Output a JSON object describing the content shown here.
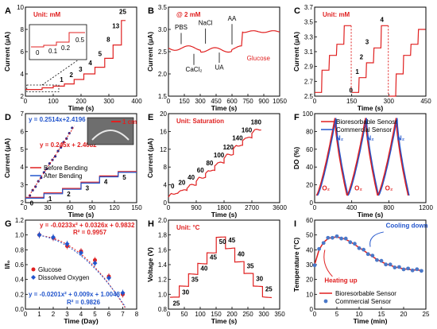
{
  "colors": {
    "red": "#e02020",
    "blue": "#2255cc",
    "black": "#000000"
  },
  "chart_data": [
    {
      "id": "A",
      "type": "line",
      "panel_label": "A",
      "annotation": "Unit: mM",
      "xlabel": "Time (s)",
      "ylabel": "Current (μA)",
      "xlim": [
        0,
        400
      ],
      "ylim": [
        2,
        10
      ],
      "xticks": [
        "0",
        "100",
        "200",
        "300",
        "400"
      ],
      "yticks": [
        "2",
        "4",
        "6",
        "8",
        "10"
      ],
      "steps": [
        {
          "x": 0,
          "y": 2.6
        },
        {
          "x": 60,
          "y": 2.75
        },
        {
          "x": 100,
          "y": 2.9
        },
        {
          "x": 140,
          "y": 3.1
        },
        {
          "x": 175,
          "y": 3.5
        },
        {
          "x": 210,
          "y": 4.0
        },
        {
          "x": 250,
          "y": 4.6
        },
        {
          "x": 285,
          "y": 5.4
        },
        {
          "x": 315,
          "y": 6.6
        },
        {
          "x": 345,
          "y": 8.8
        },
        {
          "x": 360,
          "y": 8.8
        }
      ],
      "step_labels": [
        "1",
        "2",
        "3",
        "4",
        "5",
        "8",
        "13",
        "25"
      ],
      "inset": {
        "labels": [
          "0",
          "0.1",
          "0.2",
          "0.5"
        ]
      }
    },
    {
      "id": "B",
      "type": "line",
      "panel_label": "B",
      "annotation": "@ 2 mM",
      "xlabel": "Time (s)",
      "ylabel": "Current (μA)",
      "xlim": [
        0,
        1050
      ],
      "ylim": [
        1.5,
        3.5
      ],
      "xticks": [
        "0",
        "150",
        "300",
        "450",
        "600",
        "750",
        "900",
        "1050"
      ],
      "yticks": [
        "1.5",
        "2.0",
        "2.5",
        "3.0",
        "3.5"
      ],
      "series": [
        {
          "name": "trace",
          "points": [
            [
              0,
              2.6
            ],
            [
              120,
              2.58
            ],
            [
              240,
              2.5
            ],
            [
              360,
              2.52
            ],
            [
              480,
              2.55
            ],
            [
              600,
              2.5
            ],
            [
              690,
              2.5
            ],
            [
              700,
              2.95
            ],
            [
              1050,
              2.95
            ]
          ]
        }
      ],
      "annotations": [
        "PBS",
        "NaCl",
        "AA",
        "CaCl₂",
        "UA",
        "Glucose"
      ]
    },
    {
      "id": "C",
      "type": "line",
      "panel_label": "C",
      "annotation": "Unit: mM",
      "xlabel": "Time (s)",
      "ylabel": "Current (μA)",
      "xlim": [
        0,
        450
      ],
      "ylim": [
        2.5,
        3.7
      ],
      "xticks": [
        "0",
        "150",
        "300",
        "450"
      ],
      "yticks": [
        "2.5",
        "2.7",
        "2.9",
        "3.1",
        "3.3",
        "3.5",
        "3.7"
      ],
      "cycles": [
        [
          2.55,
          2.85,
          3.05,
          3.2,
          3.45
        ],
        [
          2.55,
          2.75,
          2.95,
          3.15,
          3.45
        ],
        [
          2.5,
          2.8,
          3.05,
          3.2,
          3.4
        ]
      ],
      "step_labels": [
        "0",
        "1",
        "2",
        "3",
        "4"
      ]
    },
    {
      "id": "D",
      "type": "line",
      "panel_label": "D",
      "xlabel": "Time (s)",
      "ylabel": "Current (μA)",
      "xlim": [
        0,
        150
      ],
      "ylim": [
        2,
        7
      ],
      "xticks": [
        "0",
        "30",
        "60",
        "90",
        "120",
        "150"
      ],
      "yticks": [
        "2",
        "3",
        "4",
        "5",
        "6",
        "7"
      ],
      "series": [
        {
          "name": "Before Bending",
          "color": "#e02020"
        },
        {
          "name": "After Bending",
          "color": "#2255cc"
        }
      ],
      "steps_before": [
        2.3,
        2.55,
        2.8,
        3.15,
        3.5,
        3.75
      ],
      "steps_after": [
        2.25,
        2.5,
        2.75,
        3.1,
        3.45,
        3.7
      ],
      "step_labels": [
        "0",
        "1",
        "2",
        "3",
        "4",
        "5"
      ],
      "fits": [
        "y = 0.2514x+2.4196",
        "y = 0.245x + 2.4082"
      ],
      "inset_fit_points": [
        2.4,
        2.7,
        2.9,
        3.2,
        3.4,
        3.7,
        3.9,
        4.2,
        4.4,
        4.6,
        4.9,
        5.1,
        5.4,
        5.6,
        5.9,
        6.2
      ],
      "photo_label": "1 cm"
    },
    {
      "id": "E",
      "type": "line",
      "panel_label": "E",
      "annotation": "Unit: Saturation",
      "xlabel": "Time (s)",
      "ylabel": "Current (μA)",
      "xlim": [
        0,
        3600
      ],
      "ylim": [
        0,
        20
      ],
      "xticks": [
        "0",
        "900",
        "1800",
        "2700",
        "3600"
      ],
      "yticks": [
        "0",
        "4",
        "8",
        "12",
        "16",
        "20"
      ],
      "levels": [
        0,
        20,
        40,
        60,
        80,
        100,
        120,
        140,
        160,
        180
      ],
      "values": [
        2.0,
        2.8,
        4.0,
        5.6,
        7.2,
        9.0,
        10.8,
        12.8,
        14.6,
        16.4
      ]
    },
    {
      "id": "F",
      "type": "line",
      "panel_label": "F",
      "xlabel": "Time (s)",
      "ylabel": "DO (%)",
      "xlim": [
        0,
        1200
      ],
      "ylim": [
        0,
        100
      ],
      "xticks": [
        "0",
        "400",
        "800",
        "1200"
      ],
      "yticks": [
        "0",
        "20",
        "40",
        "60",
        "80",
        "100"
      ],
      "series": [
        {
          "name": "Bioresorbable Senosr",
          "color": "#e02020"
        },
        {
          "name": "Commercial Sensor",
          "color": "#2255cc"
        }
      ],
      "cycle_starts": [
        0,
        330,
        660,
        990
      ],
      "gas_labels": [
        "N₂",
        "N₂",
        "N₂",
        "O₂",
        "O₂",
        "O₂"
      ]
    },
    {
      "id": "G",
      "type": "scatter",
      "panel_label": "G",
      "xlabel": "Time (Day)",
      "ylabel": "I/I₀",
      "xlim": [
        0,
        8
      ],
      "ylim": [
        0,
        1.2
      ],
      "xticks": [
        "0",
        "1",
        "2",
        "3",
        "4",
        "5",
        "6",
        "7",
        "8"
      ],
      "yticks": [
        "0.0",
        "0.2",
        "0.4",
        "0.6",
        "0.8",
        "1.0",
        "1.2"
      ],
      "series": [
        {
          "name": "Glucose",
          "color": "#e02020",
          "x": [
            1,
            2,
            3,
            4,
            5,
            6,
            7
          ],
          "y": [
            1.0,
            0.96,
            0.85,
            0.78,
            0.66,
            0.44,
            0.2
          ]
        },
        {
          "name": "Dissolved Oxygen",
          "color": "#2255cc",
          "x": [
            1,
            2,
            3,
            4,
            5,
            6,
            7
          ],
          "y": [
            1.0,
            0.97,
            0.88,
            0.76,
            0.62,
            0.42,
            0.22
          ]
        }
      ],
      "fits": [
        "y = -0.0233x² + 0.0326x + 0.9832",
        "R² = 0.9957",
        "y = -0.0201x² + 0.009x + 1.0048",
        "R² = 0.9826"
      ]
    },
    {
      "id": "H",
      "type": "line",
      "panel_label": "H",
      "annotation": "Unit: °C",
      "xlabel": "Time (s)",
      "ylabel": "Voltage (V)",
      "xlim": [
        0,
        350
      ],
      "ylim": [
        0.8,
        2.0
      ],
      "xticks": [
        "0",
        "50",
        "100",
        "150",
        "200",
        "250",
        "300",
        "350"
      ],
      "yticks": [
        "0.8",
        "1.0",
        "1.2",
        "1.4",
        "1.6",
        "1.8",
        "2.0"
      ],
      "levels": [
        25,
        30,
        35,
        40,
        45,
        50,
        45,
        40,
        35,
        30,
        25
      ],
      "values": [
        0.95,
        1.1,
        1.27,
        1.42,
        1.57,
        1.78,
        1.62,
        1.43,
        1.27,
        1.1,
        0.96
      ]
    },
    {
      "id": "I",
      "type": "line",
      "panel_label": "I",
      "xlabel": "Time (min)",
      "ylabel": "Temperature (°C)",
      "xlim": [
        0,
        25
      ],
      "ylim": [
        0,
        60
      ],
      "xticks": [
        "0",
        "5",
        "10",
        "15",
        "20",
        "25"
      ],
      "yticks": [
        "0",
        "10",
        "20",
        "30",
        "40",
        "50",
        "60"
      ],
      "series": [
        {
          "name": "Bioresorbable Sensor",
          "color": "#e02020"
        },
        {
          "name": "Commercial  Sensor",
          "color": "#2255cc"
        }
      ],
      "x": [
        0,
        1,
        2,
        3,
        4,
        5,
        6,
        7,
        8,
        9,
        10,
        11,
        12,
        13,
        14,
        15,
        16,
        17,
        18,
        19,
        20,
        21,
        22,
        23,
        24
      ],
      "y": [
        30,
        40,
        45,
        47.5,
        48.5,
        48.5,
        48,
        47,
        45.5,
        43.5,
        41.5,
        39.5,
        37.5,
        35.5,
        33.5,
        32,
        30.5,
        29.5,
        28.5,
        27.8,
        27.2,
        26.8,
        26.5,
        26.3,
        26.2
      ],
      "annotations": [
        "Heating up",
        "Cooling down"
      ]
    }
  ]
}
